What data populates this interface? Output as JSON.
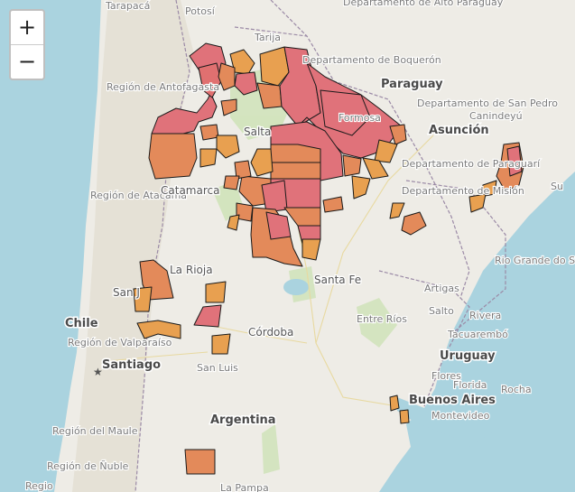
{
  "controls": {
    "zoom_in": "+",
    "zoom_out": "−"
  },
  "colors": {
    "ocean": "#aad3df",
    "land": "#eeece6",
    "high": "#e0727a",
    "mid": "#e38a5a",
    "low": "#e8a050"
  },
  "labels": {
    "tarapaca": "Tarapacá",
    "potosi": "Potosí",
    "departamento_alto_paraguay": "Departamento de Alto Paraguay",
    "tarija": "Tarija",
    "departamento_boqueron": "Departamento de Boquerón",
    "paraguay": "Paraguay",
    "region_antofagasta": "Región de Antofagasta",
    "asuncion": "Asunción",
    "departamento_san_pedro": "Departamento de San Pedro",
    "canindeyu": "Canindeyú",
    "salta": "Salta",
    "formosa": "Formosa",
    "departamento_paraguari": "Departamento de Paraguarí",
    "departamento_mision": "Departamento de Misión",
    "region_atacama": "Región de Atacama",
    "catamarca": "Catamarca",
    "rio_grande_do_sul": "Rio Grande do Sul",
    "la_rioja": "La Rioja",
    "san_juan": "San J",
    "santa_fe": "Santa Fe",
    "artigas": "Artigas",
    "salto": "Salto",
    "rivera": "Rivera",
    "chile": "Chile",
    "entre_rios": "Entre Ríos",
    "tacuarembo": "Tacuarembó",
    "region_valparaiso": "Región de Valparaíso",
    "cordoba": "Córdoba",
    "uruguay": "Uruguay",
    "santiago": "Santiago",
    "san_luis": "San Luis",
    "flores": "Flores",
    "florida": "Florida",
    "buenos_aires": "Buenos Aires",
    "rocha": "Rocha",
    "montevideo": "Montevideo",
    "argentina": "Argentina",
    "region_maule": "Región del Maule",
    "region_nuble": "Región de Ñuble",
    "la_pampa": "La Pampa",
    "regio_bottom": "Regio",
    "sul": "Su"
  }
}
